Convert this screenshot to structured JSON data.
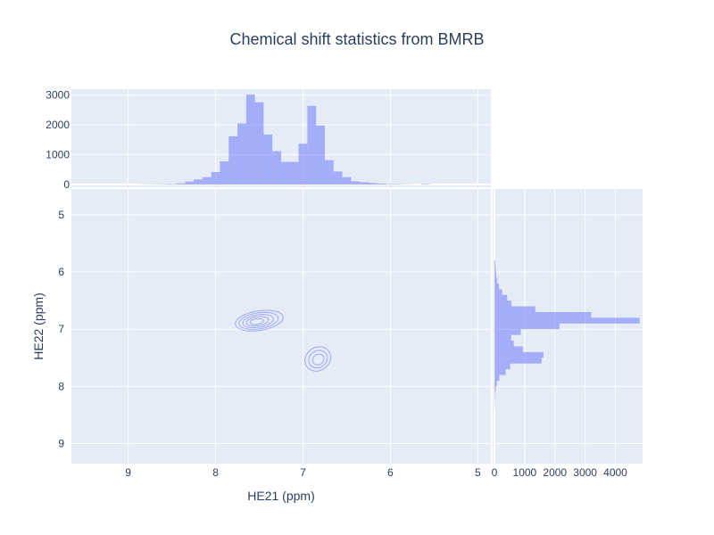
{
  "chart_data": [
    {
      "type": "contour",
      "title": "Chemical shift statistics from BMRB",
      "xlabel": "HE21 (ppm)",
      "ylabel": "HE22 (ppm)",
      "x_axis_reversed": true,
      "y_axis_reversed": true,
      "xlim": [
        9.65,
        4.85
      ],
      "ylim": [
        4.55,
        9.35
      ],
      "x_ticks": [
        "9",
        "8",
        "7",
        "6",
        "5"
      ],
      "y_ticks": [
        "5",
        "6",
        "7",
        "8",
        "9"
      ],
      "series_color": "#636efa",
      "clusters": [
        {
          "center_x": 7.5,
          "center_y": 6.85,
          "levels": 5
        },
        {
          "center_x": 6.83,
          "center_y": 7.52,
          "levels": 3
        }
      ]
    },
    {
      "type": "histogram",
      "name": "HE21 marginal",
      "orientation": "vertical",
      "ylim": [
        0,
        3200
      ],
      "y_ticks": [
        "0",
        "1000",
        "2000",
        "3000"
      ],
      "bins": [
        {
          "x": 8.8,
          "count": 8
        },
        {
          "x": 8.7,
          "count": 10
        },
        {
          "x": 8.6,
          "count": 15
        },
        {
          "x": 8.5,
          "count": 20
        },
        {
          "x": 8.4,
          "count": 40
        },
        {
          "x": 8.3,
          "count": 100
        },
        {
          "x": 8.2,
          "count": 170
        },
        {
          "x": 8.1,
          "count": 250
        },
        {
          "x": 8.0,
          "count": 420
        },
        {
          "x": 7.9,
          "count": 780
        },
        {
          "x": 7.8,
          "count": 1620
        },
        {
          "x": 7.7,
          "count": 2050
        },
        {
          "x": 7.6,
          "count": 3020
        },
        {
          "x": 7.5,
          "count": 2760
        },
        {
          "x": 7.4,
          "count": 1680
        },
        {
          "x": 7.3,
          "count": 1120
        },
        {
          "x": 7.2,
          "count": 760
        },
        {
          "x": 7.1,
          "count": 760
        },
        {
          "x": 7.0,
          "count": 1370
        },
        {
          "x": 6.9,
          "count": 2640
        },
        {
          "x": 6.8,
          "count": 1980
        },
        {
          "x": 6.7,
          "count": 820
        },
        {
          "x": 6.6,
          "count": 440
        },
        {
          "x": 6.5,
          "count": 250
        },
        {
          "x": 6.4,
          "count": 110
        },
        {
          "x": 6.3,
          "count": 80
        },
        {
          "x": 6.2,
          "count": 55
        },
        {
          "x": 6.1,
          "count": 35
        },
        {
          "x": 6.0,
          "count": 20
        },
        {
          "x": 5.9,
          "count": 15
        },
        {
          "x": 5.8,
          "count": 8
        },
        {
          "x": 5.6,
          "count": 20
        }
      ]
    },
    {
      "type": "histogram",
      "name": "HE22 marginal",
      "orientation": "horizontal",
      "xlim": [
        0,
        4900
      ],
      "x_ticks": [
        "0",
        "1000",
        "2000",
        "3000",
        "4000"
      ],
      "bins": [
        {
          "y": 5.85,
          "count": 30
        },
        {
          "y": 5.95,
          "count": 40
        },
        {
          "y": 6.05,
          "count": 60
        },
        {
          "y": 6.15,
          "count": 90
        },
        {
          "y": 6.25,
          "count": 150
        },
        {
          "y": 6.35,
          "count": 250
        },
        {
          "y": 6.45,
          "count": 420
        },
        {
          "y": 6.55,
          "count": 560
        },
        {
          "y": 6.65,
          "count": 1350
        },
        {
          "y": 6.75,
          "count": 3200
        },
        {
          "y": 6.85,
          "count": 4800
        },
        {
          "y": 6.95,
          "count": 2150
        },
        {
          "y": 7.05,
          "count": 870
        },
        {
          "y": 7.15,
          "count": 550
        },
        {
          "y": 7.25,
          "count": 640
        },
        {
          "y": 7.35,
          "count": 940
        },
        {
          "y": 7.45,
          "count": 1620
        },
        {
          "y": 7.55,
          "count": 1560
        },
        {
          "y": 7.65,
          "count": 520
        },
        {
          "y": 7.75,
          "count": 370
        },
        {
          "y": 7.85,
          "count": 160
        },
        {
          "y": 7.95,
          "count": 80
        },
        {
          "y": 8.05,
          "count": 40
        },
        {
          "y": 8.15,
          "count": 20
        },
        {
          "y": 8.25,
          "count": 12
        },
        {
          "y": 8.35,
          "count": 8
        }
      ]
    }
  ]
}
